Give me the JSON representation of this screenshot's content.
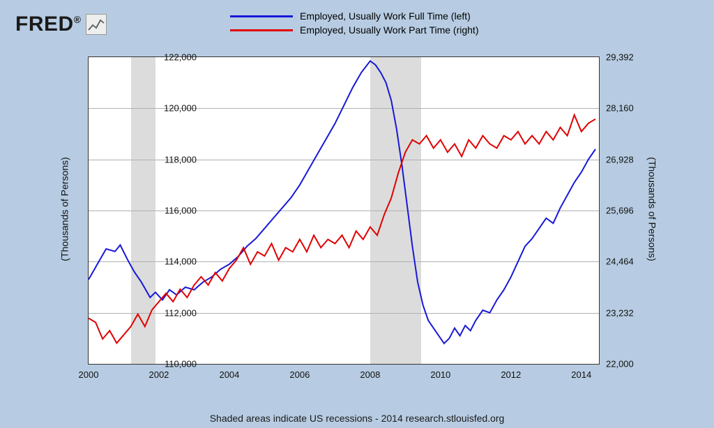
{
  "logo_text": "FRED",
  "legend": {
    "series1": {
      "label": "Employed, Usually Work Full Time (left)",
      "color": "#1818d8"
    },
    "series2": {
      "label": "Employed, Usually Work Part Time (right)",
      "color": "#e00000"
    }
  },
  "footnote": "Shaded areas indicate US recessions - 2014 research.stlouisfed.org",
  "axis_left_label": "(Thousands of Persons)",
  "axis_right_label": "(Thousands of Persons)",
  "chart": {
    "type": "line-dual-axis",
    "background_color": "#ffffff",
    "grid_color": "#b0b0b0",
    "page_bg": "#b7cce2",
    "x": {
      "min": 2000,
      "max": 2014.5,
      "ticks": [
        2000,
        2002,
        2004,
        2006,
        2008,
        2010,
        2012,
        2014
      ]
    },
    "y_left": {
      "min": 110000,
      "max": 122000,
      "ticks": [
        110000,
        112000,
        114000,
        116000,
        118000,
        120000,
        122000
      ]
    },
    "y_right": {
      "min": 22000,
      "max": 29392,
      "ticks": [
        22000,
        23232,
        24464,
        25696,
        26928,
        28160,
        29392
      ]
    },
    "recessions": [
      {
        "start": 2001.2,
        "end": 2001.9
      },
      {
        "start": 2008.0,
        "end": 2009.45
      }
    ],
    "series1": {
      "color": "#1818d8",
      "width": 2,
      "data": [
        [
          2000.0,
          113300
        ],
        [
          2000.25,
          113900
        ],
        [
          2000.5,
          114500
        ],
        [
          2000.75,
          114400
        ],
        [
          2000.9,
          114650
        ],
        [
          2001.1,
          114100
        ],
        [
          2001.3,
          113600
        ],
        [
          2001.5,
          113200
        ],
        [
          2001.75,
          112600
        ],
        [
          2001.9,
          112800
        ],
        [
          2002.1,
          112500
        ],
        [
          2002.3,
          112900
        ],
        [
          2002.5,
          112700
        ],
        [
          2002.75,
          113000
        ],
        [
          2003.0,
          112900
        ],
        [
          2003.25,
          113200
        ],
        [
          2003.5,
          113400
        ],
        [
          2003.75,
          113700
        ],
        [
          2004.0,
          113900
        ],
        [
          2004.25,
          114200
        ],
        [
          2004.5,
          114600
        ],
        [
          2004.75,
          114900
        ],
        [
          2005.0,
          115300
        ],
        [
          2005.25,
          115700
        ],
        [
          2005.5,
          116100
        ],
        [
          2005.75,
          116500
        ],
        [
          2006.0,
          117000
        ],
        [
          2006.25,
          117600
        ],
        [
          2006.5,
          118200
        ],
        [
          2006.75,
          118800
        ],
        [
          2007.0,
          119400
        ],
        [
          2007.25,
          120100
        ],
        [
          2007.5,
          120800
        ],
        [
          2007.75,
          121400
        ],
        [
          2008.0,
          121850
        ],
        [
          2008.15,
          121700
        ],
        [
          2008.3,
          121400
        ],
        [
          2008.45,
          121000
        ],
        [
          2008.6,
          120300
        ],
        [
          2008.75,
          119200
        ],
        [
          2008.9,
          117800
        ],
        [
          2009.05,
          116200
        ],
        [
          2009.2,
          114600
        ],
        [
          2009.35,
          113200
        ],
        [
          2009.5,
          112300
        ],
        [
          2009.65,
          111700
        ],
        [
          2009.8,
          111400
        ],
        [
          2009.95,
          111100
        ],
        [
          2010.1,
          110800
        ],
        [
          2010.25,
          111000
        ],
        [
          2010.4,
          111400
        ],
        [
          2010.55,
          111100
        ],
        [
          2010.7,
          111500
        ],
        [
          2010.85,
          111300
        ],
        [
          2011.0,
          111700
        ],
        [
          2011.2,
          112100
        ],
        [
          2011.4,
          112000
        ],
        [
          2011.6,
          112500
        ],
        [
          2011.8,
          112900
        ],
        [
          2012.0,
          113400
        ],
        [
          2012.2,
          114000
        ],
        [
          2012.4,
          114600
        ],
        [
          2012.6,
          114900
        ],
        [
          2012.8,
          115300
        ],
        [
          2013.0,
          115700
        ],
        [
          2013.2,
          115500
        ],
        [
          2013.4,
          116100
        ],
        [
          2013.6,
          116600
        ],
        [
          2013.8,
          117100
        ],
        [
          2014.0,
          117500
        ],
        [
          2014.2,
          118000
        ],
        [
          2014.4,
          118400
        ]
      ]
    },
    "series2": {
      "color": "#e00000",
      "width": 2,
      "data": [
        [
          2000.0,
          23100
        ],
        [
          2000.2,
          23000
        ],
        [
          2000.4,
          22600
        ],
        [
          2000.6,
          22800
        ],
        [
          2000.8,
          22500
        ],
        [
          2001.0,
          22700
        ],
        [
          2001.2,
          22900
        ],
        [
          2001.4,
          23200
        ],
        [
          2001.6,
          22900
        ],
        [
          2001.8,
          23300
        ],
        [
          2002.0,
          23500
        ],
        [
          2002.2,
          23700
        ],
        [
          2002.4,
          23500
        ],
        [
          2002.6,
          23800
        ],
        [
          2002.8,
          23600
        ],
        [
          2003.0,
          23900
        ],
        [
          2003.2,
          24100
        ],
        [
          2003.4,
          23900
        ],
        [
          2003.6,
          24200
        ],
        [
          2003.8,
          24000
        ],
        [
          2004.0,
          24300
        ],
        [
          2004.2,
          24500
        ],
        [
          2004.4,
          24800
        ],
        [
          2004.6,
          24400
        ],
        [
          2004.8,
          24700
        ],
        [
          2005.0,
          24600
        ],
        [
          2005.2,
          24900
        ],
        [
          2005.4,
          24500
        ],
        [
          2005.6,
          24800
        ],
        [
          2005.8,
          24700
        ],
        [
          2006.0,
          25000
        ],
        [
          2006.2,
          24700
        ],
        [
          2006.4,
          25100
        ],
        [
          2006.6,
          24800
        ],
        [
          2006.8,
          25000
        ],
        [
          2007.0,
          24900
        ],
        [
          2007.2,
          25100
        ],
        [
          2007.4,
          24800
        ],
        [
          2007.6,
          25200
        ],
        [
          2007.8,
          25000
        ],
        [
          2008.0,
          25300
        ],
        [
          2008.2,
          25100
        ],
        [
          2008.4,
          25600
        ],
        [
          2008.6,
          26000
        ],
        [
          2008.8,
          26600
        ],
        [
          2009.0,
          27100
        ],
        [
          2009.2,
          27400
        ],
        [
          2009.4,
          27300
        ],
        [
          2009.6,
          27500
        ],
        [
          2009.8,
          27200
        ],
        [
          2010.0,
          27400
        ],
        [
          2010.2,
          27100
        ],
        [
          2010.4,
          27300
        ],
        [
          2010.6,
          27000
        ],
        [
          2010.8,
          27400
        ],
        [
          2011.0,
          27200
        ],
        [
          2011.2,
          27500
        ],
        [
          2011.4,
          27300
        ],
        [
          2011.6,
          27200
        ],
        [
          2011.8,
          27500
        ],
        [
          2012.0,
          27400
        ],
        [
          2012.2,
          27600
        ],
        [
          2012.4,
          27300
        ],
        [
          2012.6,
          27500
        ],
        [
          2012.8,
          27300
        ],
        [
          2013.0,
          27600
        ],
        [
          2013.2,
          27400
        ],
        [
          2013.4,
          27700
        ],
        [
          2013.6,
          27500
        ],
        [
          2013.8,
          28000
        ],
        [
          2014.0,
          27600
        ],
        [
          2014.2,
          27800
        ],
        [
          2014.4,
          27900
        ]
      ]
    }
  }
}
